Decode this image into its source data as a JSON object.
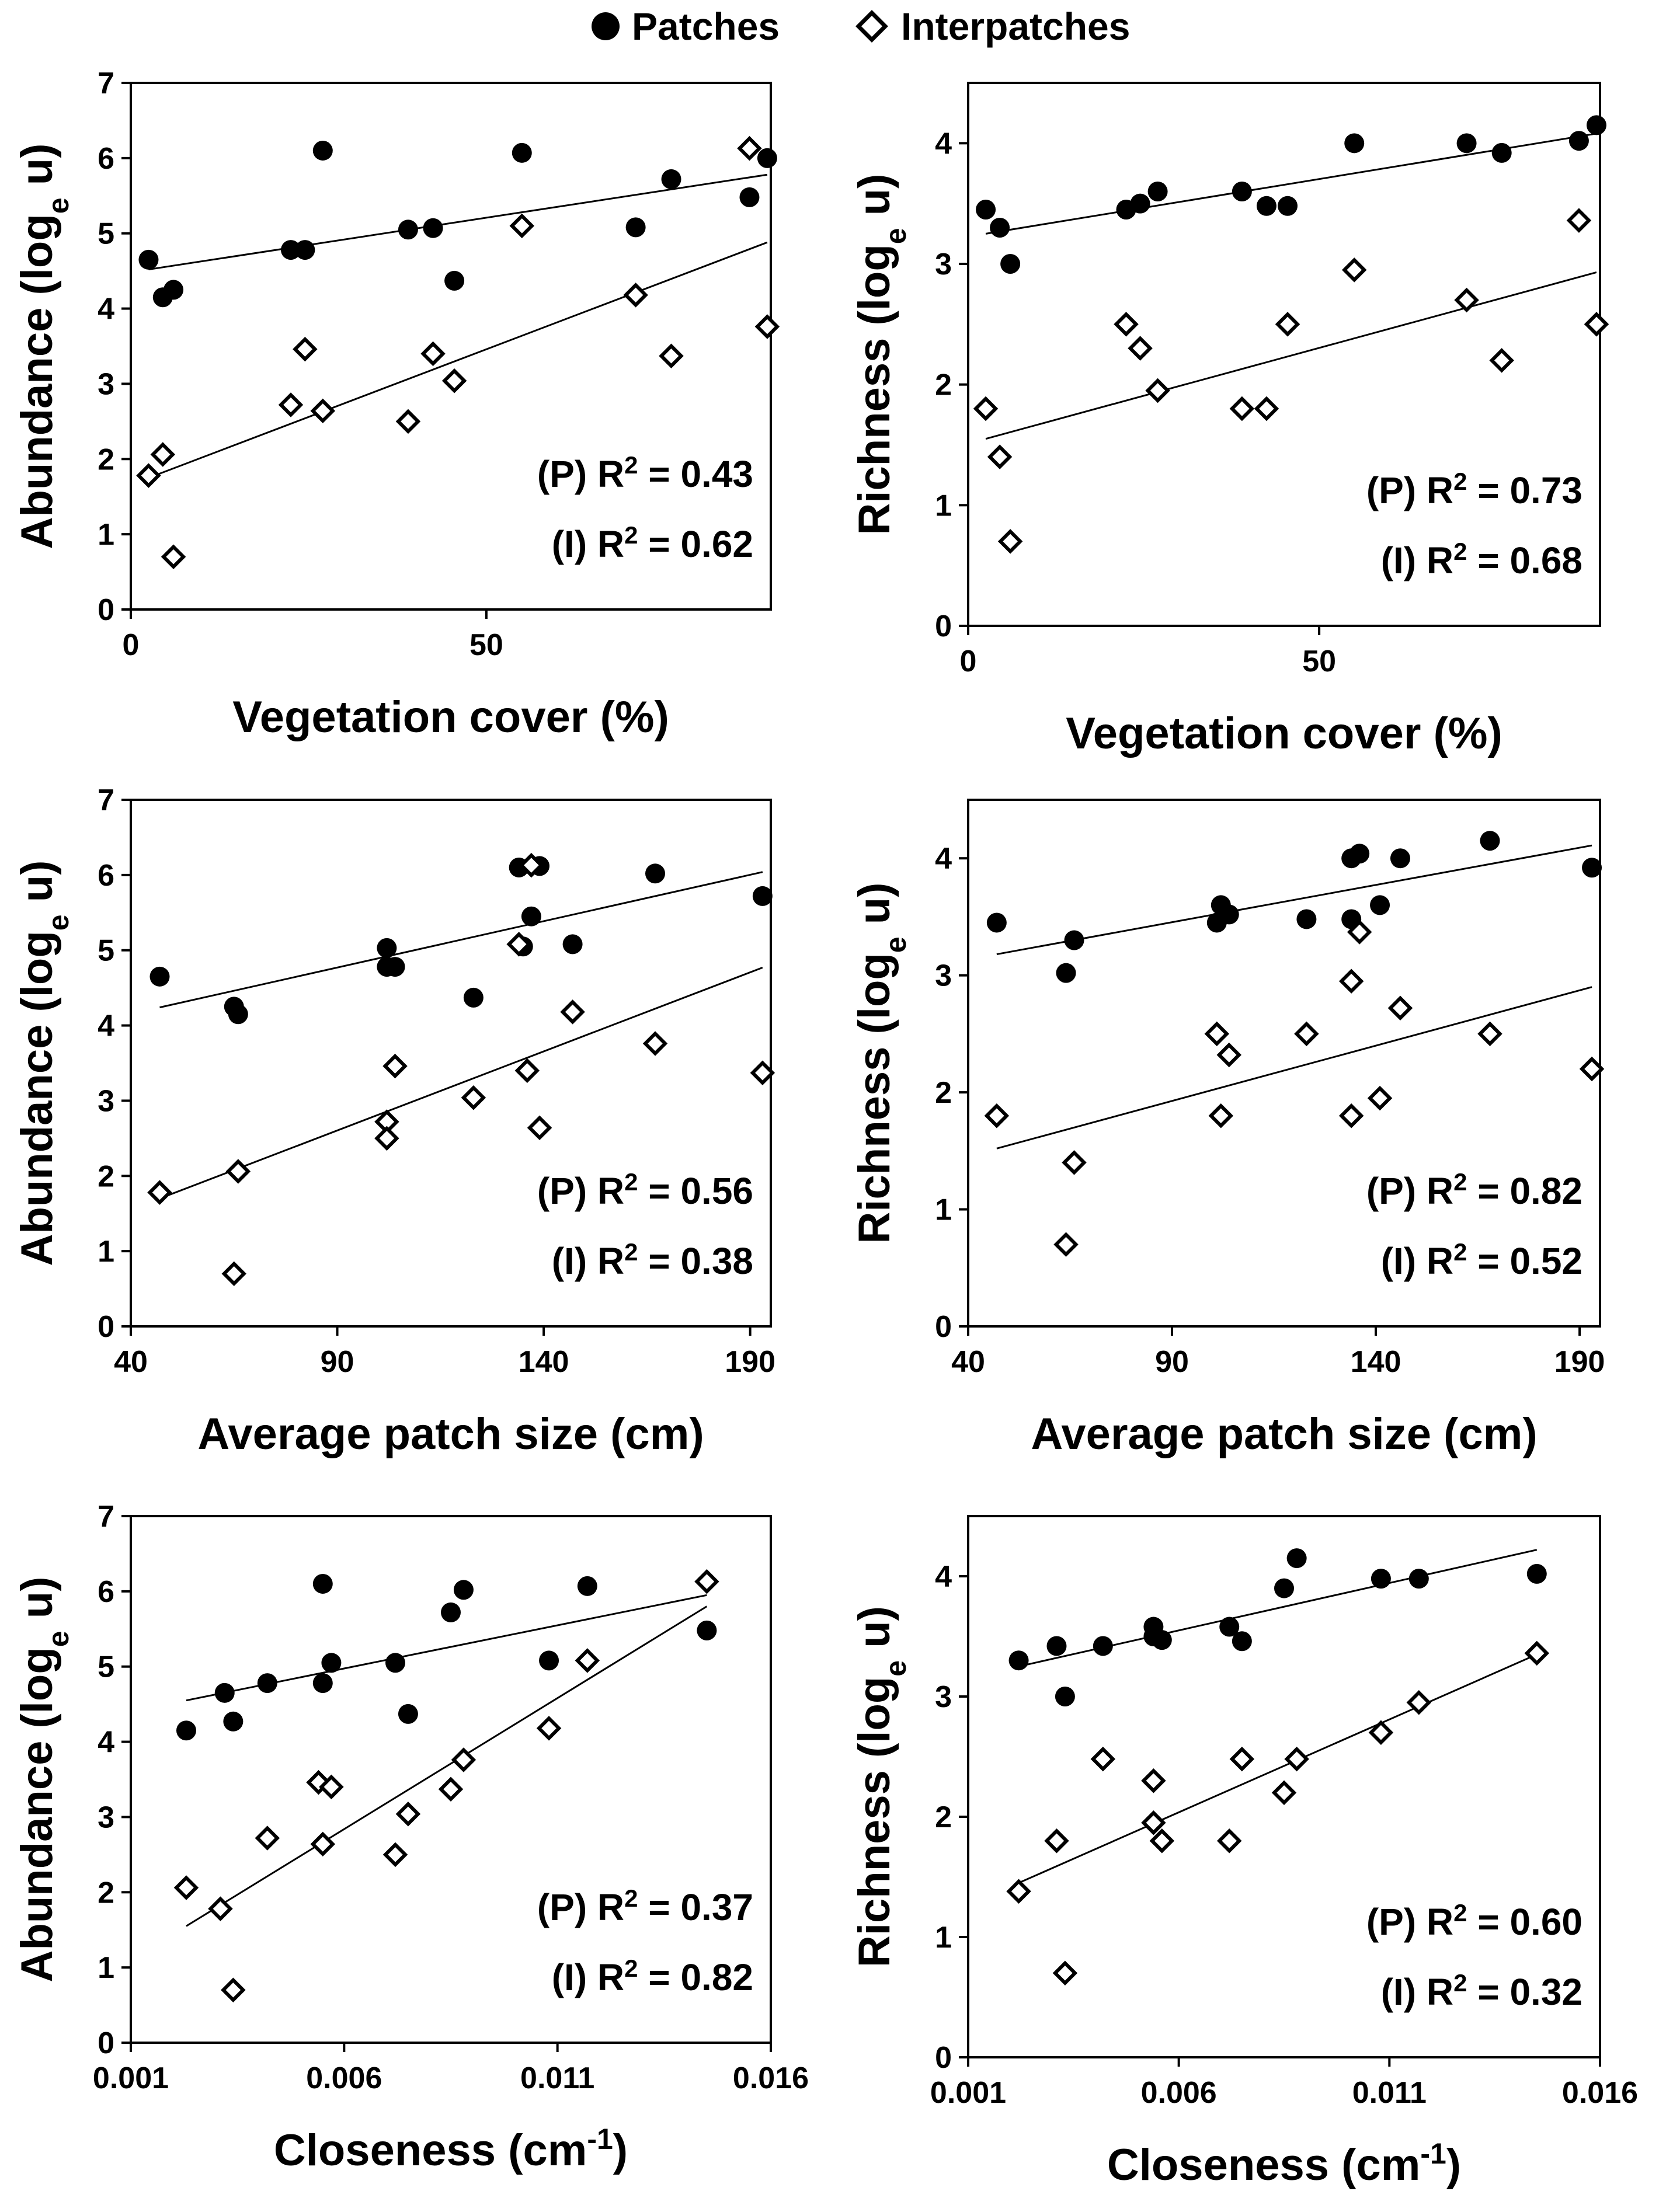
{
  "legend": {
    "patches_label": "Patches",
    "interpatches_label": "Interpatches"
  },
  "colors": {
    "ink": "#000000",
    "background": "#ffffff"
  },
  "chart_data": [
    {
      "type": "scatter",
      "panel": "top-left",
      "xlabel": "Vegetation cover (%)",
      "ylabel_main": "Abundance (log",
      "ylabel_sub": "e",
      "ylabel_end": " u)",
      "xlim": [
        0,
        90
      ],
      "ylim": [
        0,
        7
      ],
      "xticks": [
        0,
        50
      ],
      "xtick_labels": [
        "0",
        "50"
      ],
      "yticks": [
        0,
        1,
        2,
        3,
        4,
        5,
        6,
        7
      ],
      "ytick_labels": [
        "0",
        "1",
        "2",
        "3",
        "4",
        "5",
        "6",
        "7"
      ],
      "series": [
        {
          "name": "Patches",
          "marker": "filled-circle",
          "points": [
            [
              2.5,
              4.65
            ],
            [
              4.5,
              4.15
            ],
            [
              6,
              4.25
            ],
            [
              22.5,
              4.78
            ],
            [
              24.5,
              4.78
            ],
            [
              27,
              6.1
            ],
            [
              39,
              5.05
            ],
            [
              42.5,
              5.07
            ],
            [
              45.5,
              4.37
            ],
            [
              55,
              6.07
            ],
            [
              71,
              5.08
            ],
            [
              76,
              5.72
            ],
            [
              87,
              5.48
            ],
            [
              89.5,
              6.0
            ]
          ],
          "fit": [
            [
              2.5,
              4.52
            ],
            [
              89.5,
              5.78
            ]
          ],
          "r2_label": "(P) R",
          "r2_value": " = 0.43"
        },
        {
          "name": "Interpatches",
          "marker": "open-diamond",
          "points": [
            [
              2.5,
              1.78
            ],
            [
              4.5,
              2.06
            ],
            [
              6,
              0.7
            ],
            [
              22.5,
              2.72
            ],
            [
              24.5,
              3.46
            ],
            [
              27,
              2.64
            ],
            [
              39,
              2.5
            ],
            [
              42.5,
              3.4
            ],
            [
              45.5,
              3.04
            ],
            [
              55,
              5.1
            ],
            [
              71,
              4.18
            ],
            [
              76,
              3.37
            ],
            [
              87,
              6.13
            ],
            [
              89.5,
              3.76
            ]
          ],
          "fit": [
            [
              2.5,
              1.75
            ],
            [
              89.5,
              4.88
            ]
          ],
          "r2_label": "(I)  R",
          "r2_value": " = 0.62"
        }
      ]
    },
    {
      "type": "scatter",
      "panel": "top-right",
      "xlabel": "Vegetation cover (%)",
      "ylabel_main": "Richness (log",
      "ylabel_sub": "e",
      "ylabel_end": " u)",
      "xlim": [
        0,
        90
      ],
      "ylim": [
        0,
        4.5
      ],
      "xticks": [
        0,
        50
      ],
      "xtick_labels": [
        "0",
        "50"
      ],
      "yticks": [
        0,
        1,
        2,
        3,
        4
      ],
      "ytick_labels": [
        "0",
        "1",
        "2",
        "3",
        "4"
      ],
      "series": [
        {
          "name": "Patches",
          "marker": "filled-circle",
          "points": [
            [
              2.5,
              3.45
            ],
            [
              4.5,
              3.3
            ],
            [
              6,
              3.0
            ],
            [
              22.5,
              3.45
            ],
            [
              24.5,
              3.5
            ],
            [
              27,
              3.6
            ],
            [
              39,
              3.6
            ],
            [
              42.5,
              3.48
            ],
            [
              45.5,
              3.48
            ],
            [
              55,
              4.0
            ],
            [
              71,
              4.0
            ],
            [
              76,
              3.92
            ],
            [
              87,
              4.02
            ],
            [
              89.5,
              4.15
            ]
          ],
          "fit": [
            [
              2.5,
              3.25
            ],
            [
              89.5,
              4.08
            ]
          ],
          "r2_label": "(P) R",
          "r2_value": " = 0.73"
        },
        {
          "name": "Interpatches",
          "marker": "open-diamond",
          "points": [
            [
              2.5,
              1.8
            ],
            [
              4.5,
              1.4
            ],
            [
              6,
              0.7
            ],
            [
              22.5,
              2.5
            ],
            [
              24.5,
              2.3
            ],
            [
              27,
              1.95
            ],
            [
              39,
              1.8
            ],
            [
              42.5,
              1.8
            ],
            [
              45.5,
              2.5
            ],
            [
              55,
              2.95
            ],
            [
              71,
              2.7
            ],
            [
              76,
              2.2
            ],
            [
              87,
              3.36
            ],
            [
              89.5,
              2.5
            ]
          ],
          "fit": [
            [
              2.5,
              1.55
            ],
            [
              89.5,
              2.93
            ]
          ],
          "r2_label": "(I)  R",
          "r2_value": " = 0.68"
        }
      ]
    },
    {
      "type": "scatter",
      "panel": "middle-left",
      "xlabel": "Average patch size (cm)",
      "ylabel_main": "Abundance (log",
      "ylabel_sub": "e",
      "ylabel_end": " u)",
      "xlim": [
        40,
        195
      ],
      "ylim": [
        0,
        7
      ],
      "xticks": [
        40,
        90,
        140,
        190
      ],
      "xtick_labels": [
        "40",
        "90",
        "140",
        "190"
      ],
      "yticks": [
        0,
        1,
        2,
        3,
        4,
        5,
        6,
        7
      ],
      "ytick_labels": [
        "0",
        "1",
        "2",
        "3",
        "4",
        "5",
        "6",
        "7"
      ],
      "series": [
        {
          "name": "Patches",
          "marker": "filled-circle",
          "points": [
            [
              47,
              4.65
            ],
            [
              65,
              4.25
            ],
            [
              66,
              4.15
            ],
            [
              102,
              5.03
            ],
            [
              102,
              4.78
            ],
            [
              104,
              4.78
            ],
            [
              123,
              4.37
            ],
            [
              134,
              6.1
            ],
            [
              135,
              5.05
            ],
            [
              137,
              5.45
            ],
            [
              139,
              6.12
            ],
            [
              147,
              5.08
            ],
            [
              167,
              6.02
            ],
            [
              193,
              5.72
            ]
          ],
          "fit": [
            [
              47,
              4.24
            ],
            [
              193,
              6.04
            ]
          ],
          "r2_label": "(P) R",
          "r2_value": " = 0.56"
        },
        {
          "name": "Interpatches",
          "marker": "open-diamond",
          "points": [
            [
              47,
              1.78
            ],
            [
              65,
              0.7
            ],
            [
              66,
              2.06
            ],
            [
              102,
              2.72
            ],
            [
              102,
              2.5
            ],
            [
              104,
              3.46
            ],
            [
              123,
              3.04
            ],
            [
              134,
              5.08
            ],
            [
              136,
              3.4
            ],
            [
              137,
              6.13
            ],
            [
              139,
              2.64
            ],
            [
              147,
              4.18
            ],
            [
              167,
              3.76
            ],
            [
              193,
              3.37
            ]
          ],
          "fit": [
            [
              47,
              1.7
            ],
            [
              193,
              4.77
            ]
          ],
          "r2_label": "(I)  R",
          "r2_value": " = 0.38"
        }
      ]
    },
    {
      "type": "scatter",
      "panel": "middle-right",
      "xlabel": "Average patch size (cm)",
      "ylabel_main": "Richness (log",
      "ylabel_sub": "e",
      "ylabel_end": " u)",
      "xlim": [
        40,
        195
      ],
      "ylim": [
        0,
        4.5
      ],
      "xticks": [
        40,
        90,
        140,
        190
      ],
      "xtick_labels": [
        "40",
        "90",
        "140",
        "190"
      ],
      "yticks": [
        0,
        1,
        2,
        3,
        4
      ],
      "ytick_labels": [
        "0",
        "1",
        "2",
        "3",
        "4"
      ],
      "series": [
        {
          "name": "Patches",
          "marker": "filled-circle",
          "points": [
            [
              47,
              3.45
            ],
            [
              64,
              3.02
            ],
            [
              66,
              3.3
            ],
            [
              101,
              3.45
            ],
            [
              102,
              3.6
            ],
            [
              104,
              3.52
            ],
            [
              123,
              3.48
            ],
            [
              134,
              4.0
            ],
            [
              134,
              3.48
            ],
            [
              136,
              4.04
            ],
            [
              141,
              3.6
            ],
            [
              146,
              4.0
            ],
            [
              168,
              4.15
            ],
            [
              193,
              3.92
            ]
          ],
          "fit": [
            [
              47,
              3.18
            ],
            [
              193,
              4.11
            ]
          ],
          "r2_label": "(P) R",
          "r2_value": " = 0.82"
        },
        {
          "name": "Interpatches",
          "marker": "open-diamond",
          "points": [
            [
              47,
              1.8
            ],
            [
              64,
              0.7
            ],
            [
              66,
              1.4
            ],
            [
              101,
              2.5
            ],
            [
              102,
              1.8
            ],
            [
              104,
              2.32
            ],
            [
              123,
              2.5
            ],
            [
              134,
              2.95
            ],
            [
              134,
              1.8
            ],
            [
              136,
              3.37
            ],
            [
              141,
              1.95
            ],
            [
              146,
              2.72
            ],
            [
              168,
              2.5
            ],
            [
              193,
              2.2
            ]
          ],
          "fit": [
            [
              47,
              1.52
            ],
            [
              193,
              2.9
            ]
          ],
          "r2_label": "(I)  R",
          "r2_value": " = 0.52"
        }
      ]
    },
    {
      "type": "scatter",
      "panel": "bottom-left",
      "xlabel_main": "Closeness (cm",
      "xlabel_sup": "-1",
      "xlabel_end": ")",
      "ylabel_main": "Abundance (log",
      "ylabel_sub": "e",
      "ylabel_end": " u)",
      "xlim": [
        0.001,
        0.016
      ],
      "ylim": [
        0,
        7
      ],
      "xticks": [
        0.001,
        0.006,
        0.011,
        0.016
      ],
      "xtick_labels": [
        "0.001",
        "0.006",
        "0.011",
        "0.016"
      ],
      "yticks": [
        0,
        1,
        2,
        3,
        4,
        5,
        6,
        7
      ],
      "ytick_labels": [
        "0",
        "1",
        "2",
        "3",
        "4",
        "5",
        "6",
        "7"
      ],
      "series": [
        {
          "name": "Patches",
          "marker": "filled-circle",
          "points": [
            [
              0.0023,
              4.15
            ],
            [
              0.0032,
              4.65
            ],
            [
              0.0034,
              4.27
            ],
            [
              0.0042,
              4.78
            ],
            [
              0.0055,
              6.1
            ],
            [
              0.0055,
              4.78
            ],
            [
              0.0057,
              5.05
            ],
            [
              0.0072,
              5.05
            ],
            [
              0.0075,
              4.37
            ],
            [
              0.0085,
              5.72
            ],
            [
              0.0088,
              6.02
            ],
            [
              0.0108,
              5.08
            ],
            [
              0.0117,
              6.07
            ],
            [
              0.0145,
              5.48
            ]
          ],
          "fit": [
            [
              0.0023,
              4.55
            ],
            [
              0.0145,
              5.95
            ]
          ],
          "r2_label": "(P) R",
          "r2_value": " = 0.37"
        },
        {
          "name": "Interpatches",
          "marker": "open-diamond",
          "points": [
            [
              0.0023,
              2.06
            ],
            [
              0.0031,
              1.78
            ],
            [
              0.0034,
              0.7
            ],
            [
              0.0042,
              2.72
            ],
            [
              0.0054,
              3.46
            ],
            [
              0.0055,
              2.64
            ],
            [
              0.0057,
              3.4
            ],
            [
              0.0072,
              2.5
            ],
            [
              0.0075,
              3.04
            ],
            [
              0.0085,
              3.37
            ],
            [
              0.0088,
              3.76
            ],
            [
              0.0108,
              4.18
            ],
            [
              0.0117,
              5.08
            ],
            [
              0.0145,
              6.13
            ]
          ],
          "fit": [
            [
              0.0023,
              1.55
            ],
            [
              0.0145,
              5.8
            ]
          ],
          "r2_label": "(I)  R",
          "r2_value": " = 0.82"
        }
      ]
    },
    {
      "type": "scatter",
      "panel": "bottom-right",
      "xlabel_main": "Closeness (cm",
      "xlabel_sup": "-1",
      "xlabel_end": ")",
      "ylabel_main": "Richness (log",
      "ylabel_sub": "e",
      "ylabel_end": " u)",
      "xlim": [
        0.001,
        0.016
      ],
      "ylim": [
        0,
        4.5
      ],
      "xticks": [
        0.001,
        0.006,
        0.011,
        0.016
      ],
      "xtick_labels": [
        "0.001",
        "0.006",
        "0.011",
        "0.016"
      ],
      "yticks": [
        0,
        1,
        2,
        3,
        4
      ],
      "ytick_labels": [
        "0",
        "1",
        "2",
        "3",
        "4"
      ],
      "series": [
        {
          "name": "Patches",
          "marker": "filled-circle",
          "points": [
            [
              0.0022,
              3.3
            ],
            [
              0.0031,
              3.42
            ],
            [
              0.0033,
              3.0
            ],
            [
              0.0042,
              3.42
            ],
            [
              0.0054,
              3.58
            ],
            [
              0.0054,
              3.5
            ],
            [
              0.0056,
              3.47
            ],
            [
              0.0072,
              3.58
            ],
            [
              0.0075,
              3.46
            ],
            [
              0.0085,
              3.9
            ],
            [
              0.0088,
              4.15
            ],
            [
              0.0108,
              3.98
            ],
            [
              0.0117,
              3.98
            ],
            [
              0.0145,
              4.02
            ]
          ],
          "fit": [
            [
              0.0022,
              3.25
            ],
            [
              0.0145,
              4.22
            ]
          ],
          "r2_label": "(P) R",
          "r2_value": " = 0.60"
        },
        {
          "name": "Interpatches",
          "marker": "open-diamond",
          "points": [
            [
              0.0022,
              1.38
            ],
            [
              0.0031,
              1.8
            ],
            [
              0.0033,
              0.7
            ],
            [
              0.0042,
              2.48
            ],
            [
              0.0054,
              2.3
            ],
            [
              0.0054,
              1.95
            ],
            [
              0.0056,
              1.8
            ],
            [
              0.0072,
              1.8
            ],
            [
              0.0075,
              2.48
            ],
            [
              0.0085,
              2.2
            ],
            [
              0.0088,
              2.48
            ],
            [
              0.0108,
              2.7
            ],
            [
              0.0117,
              2.95
            ],
            [
              0.0145,
              3.36
            ]
          ],
          "fit": [
            [
              0.0022,
              1.45
            ],
            [
              0.0145,
              3.35
            ]
          ],
          "r2_label": "(I)  R",
          "r2_value": " = 0.32"
        }
      ]
    }
  ]
}
